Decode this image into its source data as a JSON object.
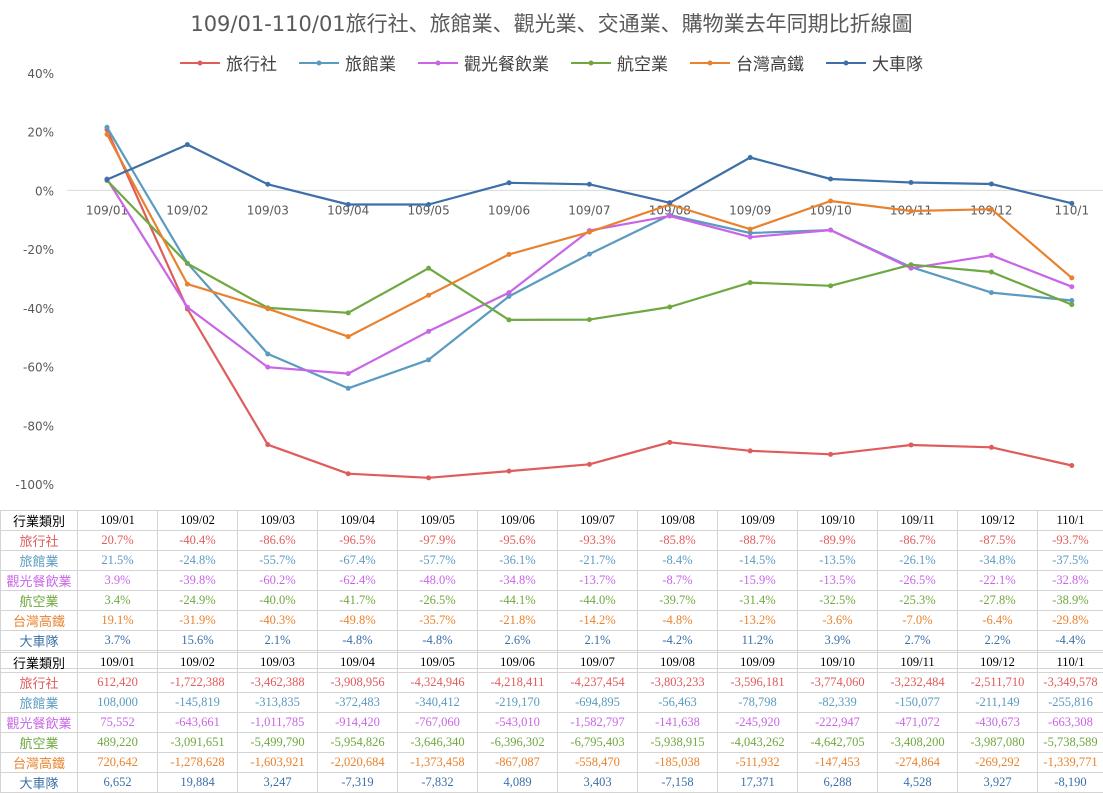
{
  "chart_data": {
    "type": "line",
    "title": "109/01-110/01旅行社、旅館業、觀光業、交通業、購物業去年同期比折線圖",
    "categories": [
      "109/01",
      "109/02",
      "109/03",
      "109/04",
      "109/05",
      "109/06",
      "109/07",
      "109/08",
      "109/09",
      "109/10",
      "109/11",
      "109/12",
      "110/1"
    ],
    "ylim": [
      -100,
      40
    ],
    "yticks": [
      "40%",
      "20%",
      "0%",
      "-20%",
      "-40%",
      "-60%",
      "-80%",
      "-100%"
    ],
    "ytick_values": [
      40,
      20,
      0,
      -20,
      -40,
      -60,
      -80,
      -100
    ],
    "legend_position": "top",
    "grid": false,
    "series": [
      {
        "name": "旅行社",
        "color": "#e05c5c",
        "values": [
          20.7,
          -40.4,
          -86.6,
          -96.5,
          -97.9,
          -95.6,
          -93.3,
          -85.8,
          -88.7,
          -89.9,
          -86.7,
          -87.5,
          -93.7
        ]
      },
      {
        "name": "旅館業",
        "color": "#5b9bbf",
        "values": [
          21.5,
          -24.8,
          -55.7,
          -67.4,
          -57.7,
          -36.1,
          -21.7,
          -8.4,
          -14.5,
          -13.5,
          -26.1,
          -34.8,
          -37.5
        ]
      },
      {
        "name": "觀光餐飲業",
        "color": "#c965e6",
        "values": [
          3.9,
          -39.8,
          -60.2,
          -62.4,
          -48.0,
          -34.8,
          -13.7,
          -8.7,
          -15.9,
          -13.5,
          -26.5,
          -22.1,
          -32.8
        ]
      },
      {
        "name": "航空業",
        "color": "#6fa840",
        "values": [
          3.4,
          -24.9,
          -40.0,
          -41.7,
          -26.5,
          -44.1,
          -44.0,
          -39.7,
          -31.4,
          -32.5,
          -25.3,
          -27.8,
          -38.9
        ]
      },
      {
        "name": "台灣高鐵",
        "color": "#e8822e",
        "values": [
          19.1,
          -31.9,
          -40.3,
          -49.8,
          -35.7,
          -21.8,
          -14.2,
          -4.8,
          -13.2,
          -3.6,
          -7.0,
          -6.4,
          -29.8
        ]
      },
      {
        "name": "大車隊",
        "color": "#3d70a8",
        "values": [
          3.7,
          15.6,
          2.1,
          -4.8,
          -4.8,
          2.6,
          2.1,
          -4.2,
          11.2,
          3.9,
          2.7,
          2.2,
          -4.4
        ]
      }
    ]
  },
  "tables": {
    "header_label": "行業類別",
    "columns": [
      "109/01",
      "109/02",
      "109/03",
      "109/04",
      "109/05",
      "109/06",
      "109/07",
      "109/08",
      "109/09",
      "109/10",
      "109/11",
      "109/12",
      "110/1"
    ],
    "percent_rows": [
      {
        "name": "旅行社",
        "cells": [
          "20.7%",
          "-40.4%",
          "-86.6%",
          "-96.5%",
          "-97.9%",
          "-95.6%",
          "-93.3%",
          "-85.8%",
          "-88.7%",
          "-89.9%",
          "-86.7%",
          "-87.5%",
          "-93.7%"
        ]
      },
      {
        "name": "旅館業",
        "cells": [
          "21.5%",
          "-24.8%",
          "-55.7%",
          "-67.4%",
          "-57.7%",
          "-36.1%",
          "-21.7%",
          "-8.4%",
          "-14.5%",
          "-13.5%",
          "-26.1%",
          "-34.8%",
          "-37.5%"
        ]
      },
      {
        "name": "觀光餐飲業",
        "cells": [
          "3.9%",
          "-39.8%",
          "-60.2%",
          "-62.4%",
          "-48.0%",
          "-34.8%",
          "-13.7%",
          "-8.7%",
          "-15.9%",
          "-13.5%",
          "-26.5%",
          "-22.1%",
          "-32.8%"
        ]
      },
      {
        "name": "航空業",
        "cells": [
          "3.4%",
          "-24.9%",
          "-40.0%",
          "-41.7%",
          "-26.5%",
          "-44.1%",
          "-44.0%",
          "-39.7%",
          "-31.4%",
          "-32.5%",
          "-25.3%",
          "-27.8%",
          "-38.9%"
        ]
      },
      {
        "name": "台灣高鐵",
        "cells": [
          "19.1%",
          "-31.9%",
          "-40.3%",
          "-49.8%",
          "-35.7%",
          "-21.8%",
          "-14.2%",
          "-4.8%",
          "-13.2%",
          "-3.6%",
          "-7.0%",
          "-6.4%",
          "-29.8%"
        ]
      },
      {
        "name": "大車隊",
        "cells": [
          "3.7%",
          "15.6%",
          "2.1%",
          "-4.8%",
          "-4.8%",
          "2.6%",
          "2.1%",
          "-4.2%",
          "11.2%",
          "3.9%",
          "2.7%",
          "2.2%",
          "-4.4%"
        ]
      }
    ],
    "value_rows": [
      {
        "name": "旅行社",
        "cells": [
          "612,420",
          "-1,722,388",
          "-3,462,388",
          "-3,908,956",
          "-4,324,946",
          "-4,218,411",
          "-4,237,454",
          "-3,803,233",
          "-3,596,181",
          "-3,774,060",
          "-3,232,484",
          "-2,511,710",
          "-3,349,578"
        ]
      },
      {
        "name": "旅館業",
        "cells": [
          "108,000",
          "-145,819",
          "-313,835",
          "-372,483",
          "-340,412",
          "-219,170",
          "-694,895",
          "-56,463",
          "-78,798",
          "-82,339",
          "-150,077",
          "-211,149",
          "-255,816"
        ]
      },
      {
        "name": "觀光餐飲業",
        "cells": [
          "75,552",
          "-643,661",
          "-1,011,785",
          "-914,420",
          "-767,060",
          "-543,010",
          "-1,582,797",
          "-141,638",
          "-245,920",
          "-222,947",
          "-471,072",
          "-430,673",
          "-663,308"
        ]
      },
      {
        "name": "航空業",
        "cells": [
          "489,220",
          "-3,091,651",
          "-5,499,790",
          "-5,954,826",
          "-3,646,340",
          "-6,396,302",
          "-6,795,403",
          "-5,938,915",
          "-4,043,262",
          "-4,642,705",
          "-3,408,200",
          "-3,987,080",
          "-5,738,589"
        ]
      },
      {
        "name": "台灣高鐵",
        "cells": [
          "720,642",
          "-1,278,628",
          "-1,603,921",
          "-2,020,684",
          "-1,373,458",
          "-867,087",
          "-558,470",
          "-185,038",
          "-511,932",
          "-147,453",
          "-274,864",
          "-269,292",
          "-1,339,771"
        ]
      },
      {
        "name": "大車隊",
        "cells": [
          "6,652",
          "19,884",
          "3,247",
          "-7,319",
          "-7,832",
          "4,089",
          "3,403",
          "-7,158",
          "17,371",
          "6,288",
          "4,528",
          "3,927",
          "-8,190"
        ]
      }
    ]
  }
}
